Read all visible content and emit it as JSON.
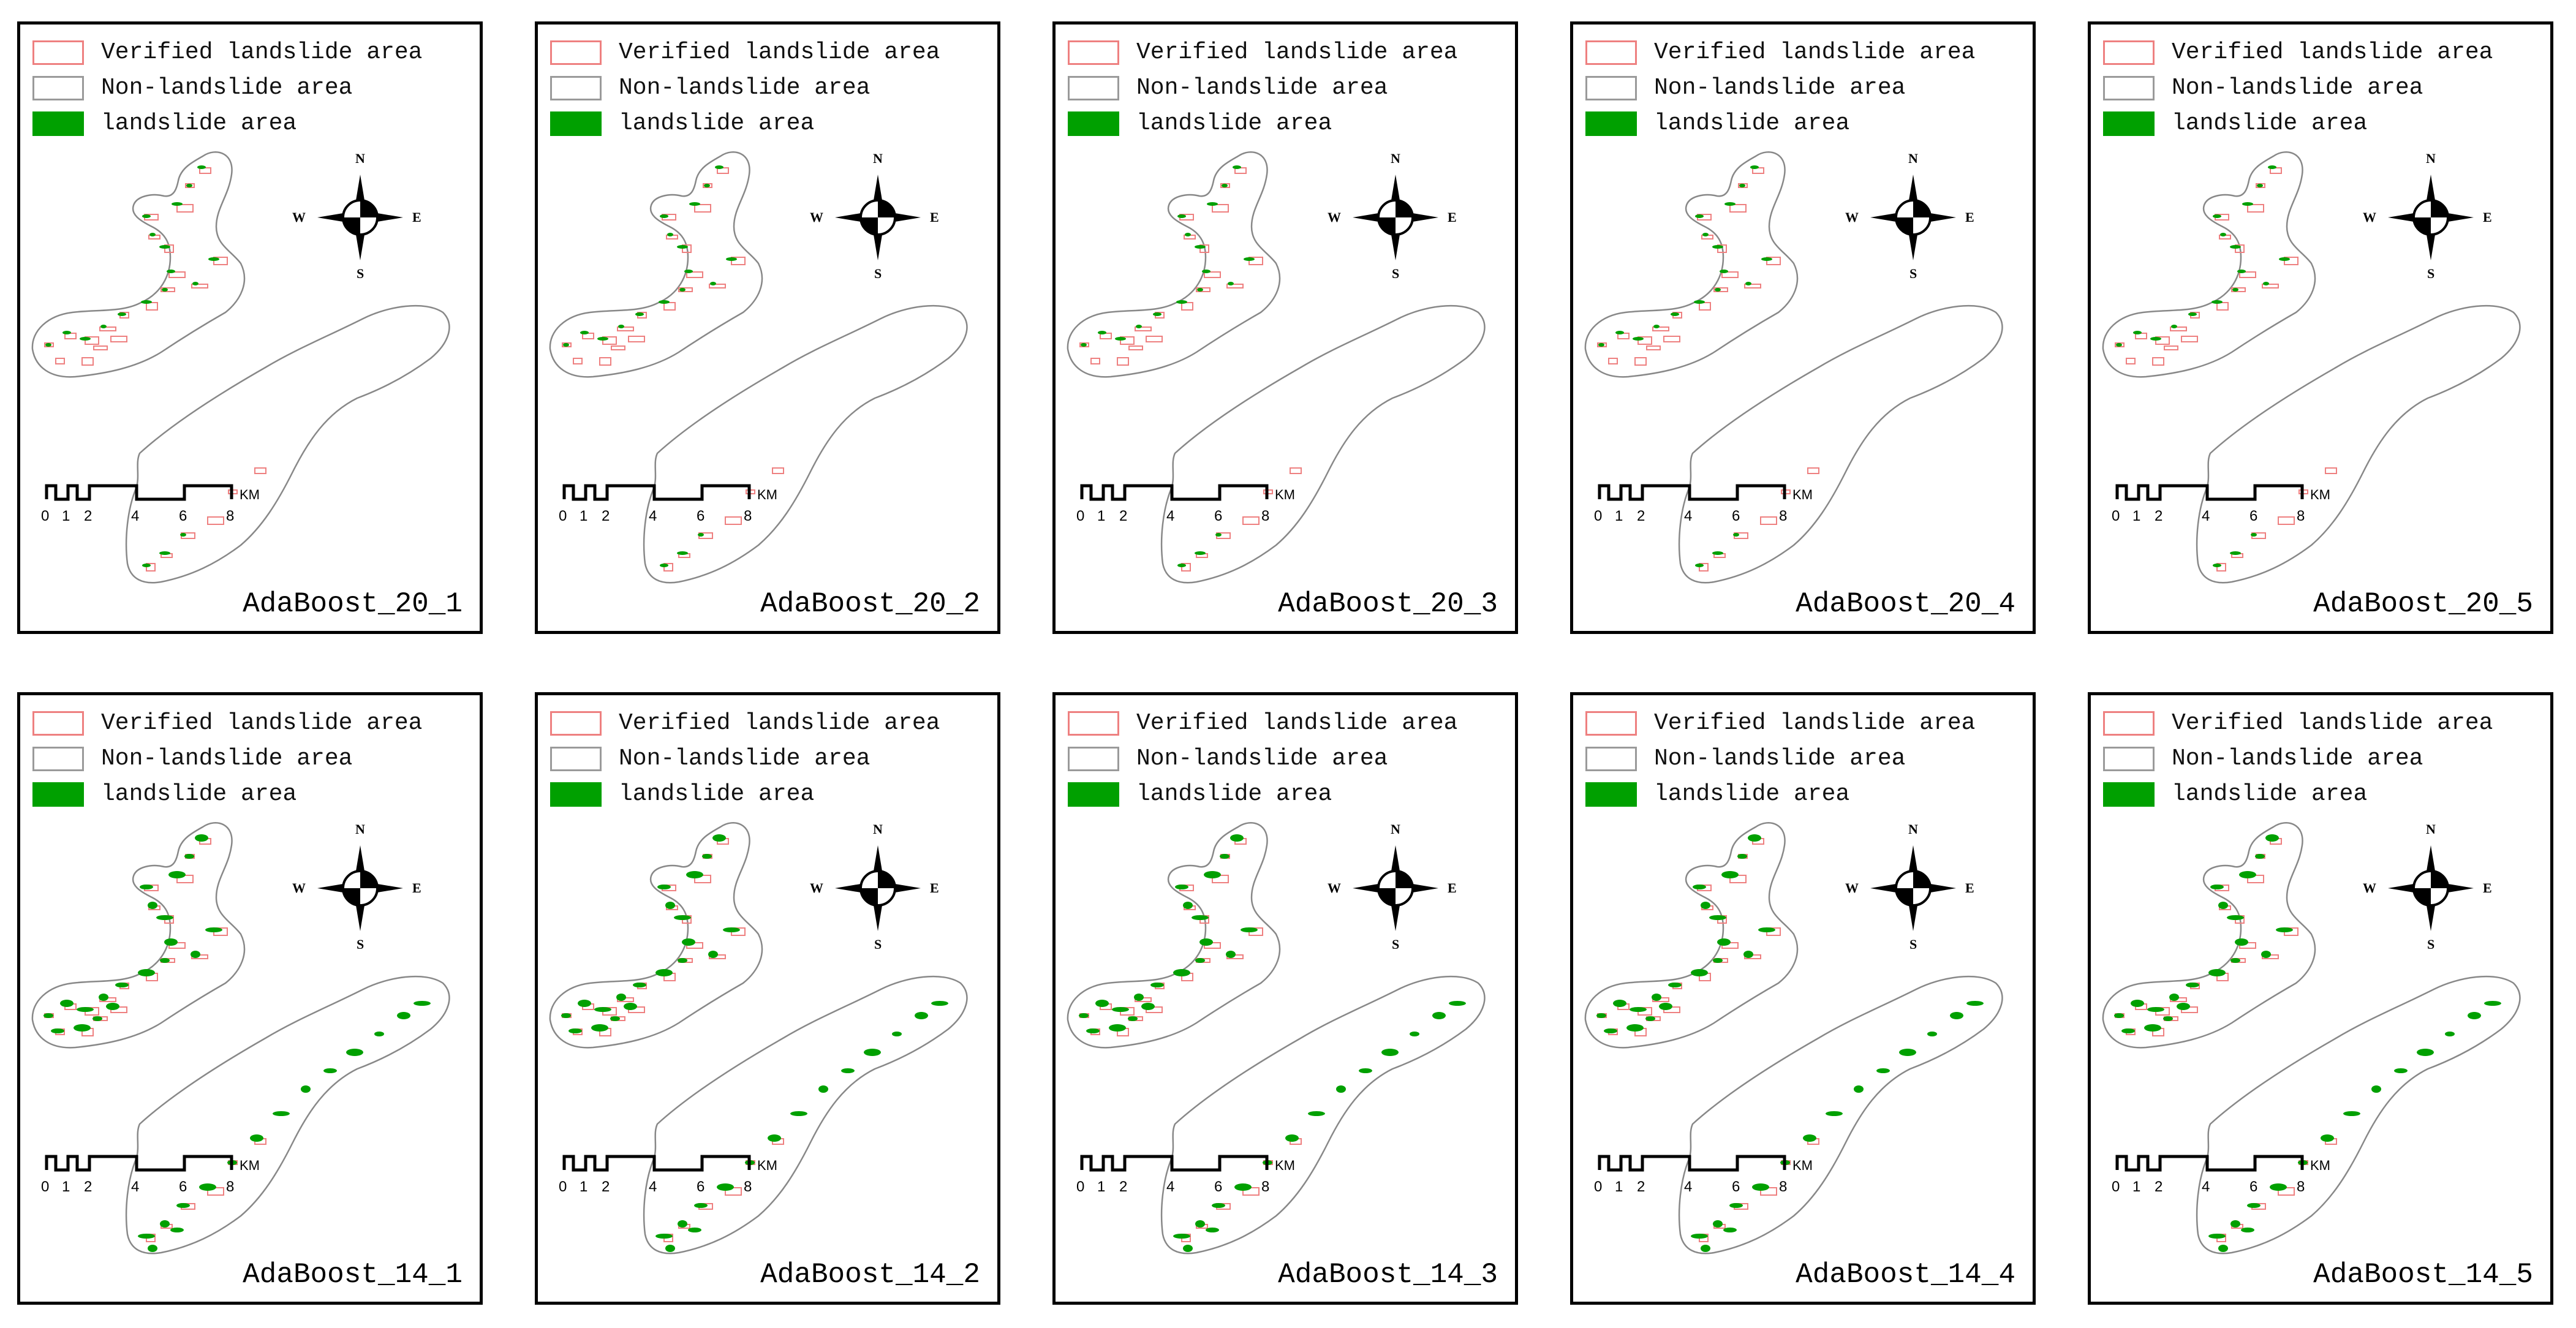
{
  "legend": {
    "verified": "Verified landslide area",
    "non": "Non-landslide area",
    "landslide": "landslide area"
  },
  "compass": {
    "n": "N",
    "s": "S",
    "e": "E",
    "w": "W"
  },
  "scale": {
    "ticks": [
      "0",
      "1",
      "2",
      "4",
      "6",
      "8"
    ],
    "unit": "KM"
  },
  "colors": {
    "verified": "#ee8080",
    "landslide": "#00a000",
    "outline": "#9a9a9a"
  },
  "panels": [
    {
      "title": "AdaBoost_20_1"
    },
    {
      "title": "AdaBoost_20_2"
    },
    {
      "title": "AdaBoost_20_3"
    },
    {
      "title": "AdaBoost_20_4"
    },
    {
      "title": "AdaBoost_20_5"
    },
    {
      "title": "AdaBoost_14_1"
    },
    {
      "title": "AdaBoost_14_2"
    },
    {
      "title": "AdaBoost_14_3"
    },
    {
      "title": "AdaBoost_14_4"
    },
    {
      "title": "AdaBoost_14_5"
    }
  ]
}
